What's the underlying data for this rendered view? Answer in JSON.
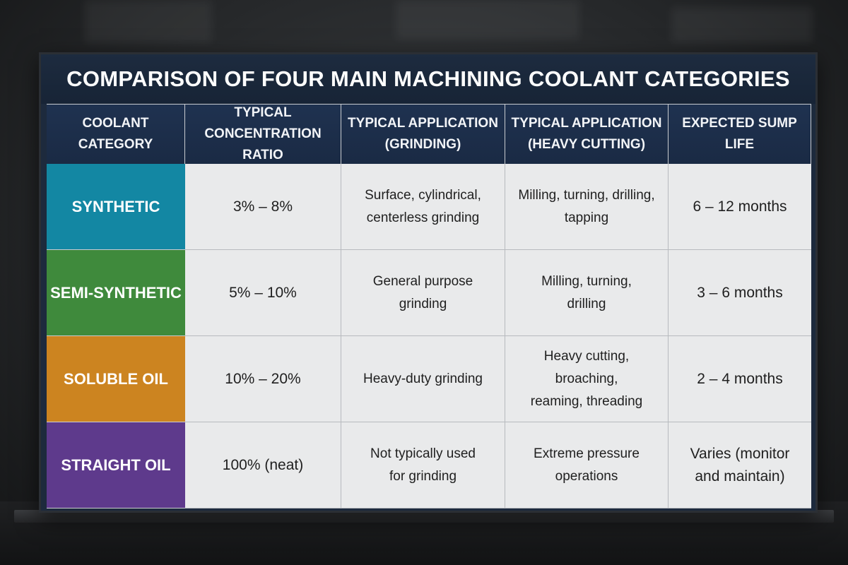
{
  "title": "COMPARISON OF FOUR MAIN MACHINING COOLANT CATEGORIES",
  "headers": [
    "COOLANT\nCATEGORY",
    "TYPICAL CONCENTRATION\nRATIO",
    "TYPICAL APPLICATION\n(GRINDING)",
    "TYPICAL APPLICATION\n(HEAVY CUTTING)",
    "EXPECTED SUMP LIFE"
  ],
  "rows": [
    {
      "category": "SYNTHETIC",
      "color": "#1387a3",
      "concentration": "3% – 8%",
      "grinding": "Surface, cylindrical,\ncenterless grinding",
      "heavy_cutting": "Milling, turning, drilling,\ntapping",
      "sump_life": "6 – 12 months"
    },
    {
      "category": "SEMI-SYNTHETIC",
      "color": "#3f8a3c",
      "concentration": "5% – 10%",
      "grinding": "General purpose\ngrinding",
      "heavy_cutting": "Milling, turning,\ndrilling",
      "sump_life": "3 – 6 months"
    },
    {
      "category": "SOLUBLE OIL",
      "color": "#cc8420",
      "concentration": "10% – 20%",
      "grinding": "Heavy-duty grinding",
      "heavy_cutting": "Heavy cutting, broaching,\nreaming, threading",
      "sump_life": "2 – 4 months"
    },
    {
      "category": "STRAIGHT OIL",
      "color": "#5e3a8c",
      "concentration": "100% (neat)",
      "grinding": "Not typically used\nfor grinding",
      "heavy_cutting": "Extreme pressure\noperations",
      "sump_life": "Varies (monitor\nand maintain)"
    }
  ]
}
